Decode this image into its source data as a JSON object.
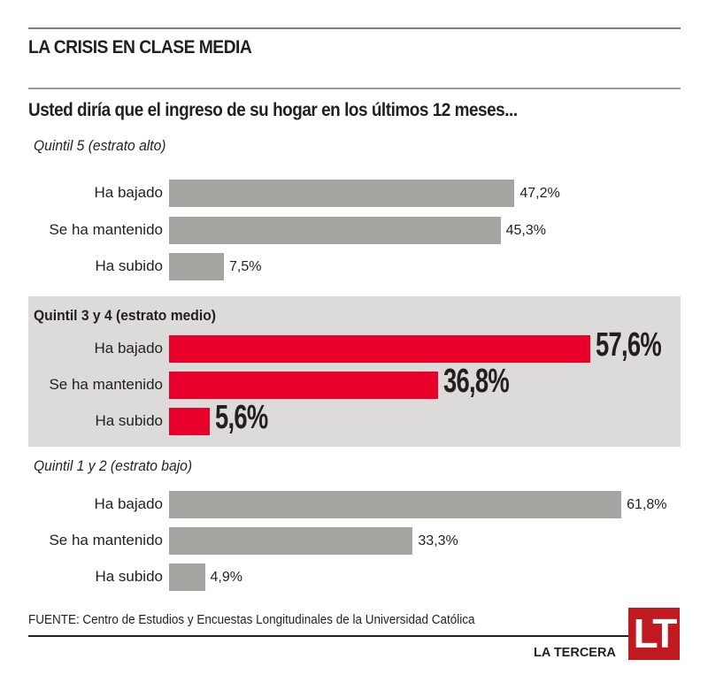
{
  "header": {
    "title": "LA CRISIS EN CLASE MEDIA",
    "subtitle": "Usted diría que el ingreso de su hogar en los últimos 12 meses..."
  },
  "chart_data": {
    "type": "bar",
    "orientation": "horizontal",
    "title": "LA CRISIS EN CLASE MEDIA",
    "subtitle": "Usted diría que el ingreso de su hogar en los últimos 12 meses...",
    "categories": [
      "Ha bajado",
      "Se ha mantenido",
      "Ha subido"
    ],
    "unit": "%",
    "xlim": [
      0,
      70
    ],
    "groups": [
      {
        "name": "Quintil 5 (estrato alto)",
        "highlight": false,
        "values": [
          47.2,
          45.3,
          7.5
        ],
        "labels": [
          "47,2%",
          "45,3%",
          "7,5%"
        ]
      },
      {
        "name": "Quintil 3 y 4 (estrato medio)",
        "highlight": true,
        "values": [
          57.6,
          36.8,
          5.6
        ],
        "labels": [
          "57,6%",
          "36,8%",
          "5,6%"
        ]
      },
      {
        "name": "Quintil 1 y 2 (estrato bajo)",
        "highlight": false,
        "values": [
          61.8,
          33.3,
          4.9
        ],
        "labels": [
          "61,8%",
          "33,3%",
          "4,9%"
        ]
      }
    ],
    "colors": {
      "default": "#a5a4a0",
      "highlight": "#e8002a",
      "band": "#dcdbd9"
    }
  },
  "footer": {
    "source": "FUENTE: Centro de Estudios y Encuestas Longitudinales de la Universidad Católica",
    "brand": "LA TERCERA",
    "logo_text": "LT",
    "logo_color": "#c11920"
  }
}
